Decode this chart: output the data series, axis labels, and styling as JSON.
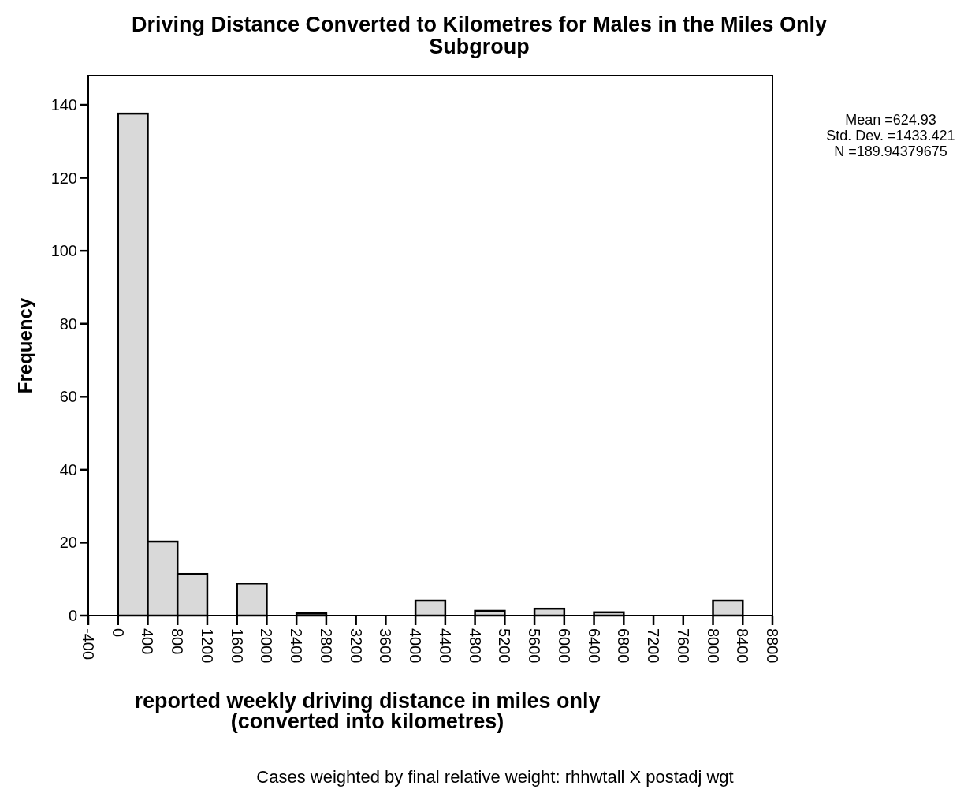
{
  "chart_data": {
    "type": "histogram",
    "title": "Driving Distance Converted to Kilometres for Males in the Miles Only Subgroup",
    "xlabel": "reported weekly driving distance in miles only\n(converted into kilometres)",
    "ylabel": "Frequency",
    "bins": [
      0,
      400,
      800,
      1200,
      1600,
      2000,
      2400,
      2800,
      3200,
      3600,
      4000,
      4400,
      4800,
      5200,
      5600,
      6000,
      6400,
      6800,
      7200,
      7600,
      8000,
      8400
    ],
    "values": [
      137.6,
      20.3,
      11.4,
      0,
      8.8,
      0,
      0.6,
      0,
      0,
      0,
      4.1,
      0,
      1.3,
      0,
      1.9,
      0,
      0.9,
      0,
      0,
      0,
      4.1
    ],
    "color": "#d9d9d9",
    "xlim": [
      -400,
      8800
    ],
    "xticks": [
      -400,
      0,
      400,
      800,
      1200,
      1600,
      2000,
      2400,
      2800,
      3200,
      3600,
      4000,
      4400,
      4800,
      5200,
      5600,
      6000,
      6400,
      6800,
      7200,
      7600,
      8000,
      8400,
      8800
    ],
    "ylim": [
      0,
      148
    ],
    "yticks": [
      0,
      20,
      40,
      60,
      80,
      100,
      120,
      140
    ],
    "annotations": [
      "Mean =624.93\nStd. Dev. =1433.421\nN =189.94379675",
      "Cases weighted by final relative weight: rhhwtall X postadj wgt"
    ]
  }
}
